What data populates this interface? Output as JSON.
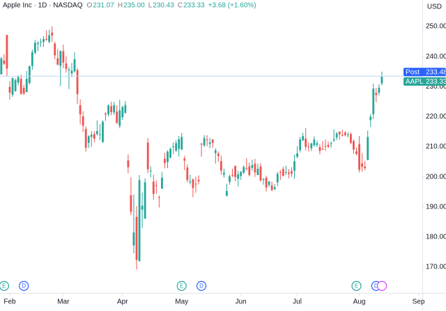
{
  "header": {
    "title": "Apple Inc · 1D · NASDAQ",
    "ohlc": [
      {
        "prefix": "O",
        "text": "231.07"
      },
      {
        "prefix": "H",
        "text": "235.00"
      },
      {
        "prefix": "L",
        "text": "230.43"
      },
      {
        "prefix": "C",
        "text": "233.33"
      }
    ],
    "change": "+3.68 (+1.60%)"
  },
  "chart_data": {
    "type": "candlestick",
    "currency": "USD",
    "up_color": "#26a69a",
    "down_color": "#ef5350",
    "open": [
      234.1,
      238.7,
      247.2,
      229.9,
      227.3,
      228.5,
      231.3,
      232.6,
      229.6,
      228.2,
      231.2,
      236.9,
      241.3,
      244.2,
      244.7,
      244.9,
      245.9,
      244.9,
      248.0,
      244.3,
      239.4,
      236.9,
      241.8,
      237.7,
      235.4,
      234.4,
      235.1,
      235.5,
      223.8,
      220.1,
      215.9,
      211.3,
      213.3,
      214.2,
      214.2,
      213.99,
      211.6,
      221.0,
      220.8,
      223.5,
      221.4,
      221.7,
      217.0,
      219.8,
      221.3,
      205.5,
      193.9,
      177.2,
      186.7,
      171.95,
      189.1,
      186.1,
      211.4,
      201.9,
      198.4,
      197.2,
      193.3,
      196.1,
      206.0,
      204.9,
      206.4,
      210.0,
      208.7,
      209.3,
      209.1,
      206.1,
      203.1,
      198.2,
      199.2,
      197.7,
      199.0,
      210.97,
      210.4,
      212.4,
      210.95,
      212.4,
      207.9,
      207.7,
      205.2,
      200.7,
      193.7,
      198.3,
      200.6,
      203.6,
      199.4,
      200.3,
      201.35,
      202.9,
      203.5,
      203.0,
      204.4,
      200.6,
      203.5,
      199.1,
      199.7,
      197.3,
      197.2,
      195.9,
      198.2,
      201.6,
      202.6,
      201.45,
      201.4,
      201.9,
      202.0,
      206.7,
      208.9,
      212.15,
      212.7,
      210.1,
      209.5,
      210.5,
      210.6,
      209.9,
      209.2,
      210.3,
      210.6,
      210.9,
      212.1,
      213.1,
      215.0,
      213.9,
      214.7,
      214.0,
      214.2,
      211.9,
      208.5,
      210.9,
      204.5,
      203.4,
      205.6,
      218.9,
      220.8,
      227.9,
      228.0,
      231.07
    ],
    "high": [
      239.9,
      240.8,
      247.2,
      231.8,
      233.1,
      232.7,
      233.8,
      234.0,
      230.6,
      235.2,
      236.9,
      242.3,
      245.6,
      245.2,
      246.0,
      246.8,
      248.7,
      248.9,
      250.0,
      244.98,
      242.5,
      242.1,
      244.0,
      240.1,
      236.6,
      237.9,
      241.4,
      236.2,
      225.8,
      221.8,
      216.8,
      213.9,
      215.2,
      215.2,
      218.8,
      217.5,
      218.8,
      221.5,
      224.1,
      225.0,
      224.99,
      223.8,
      225.6,
      223.7,
      225.2,
      207.5,
      199.9,
      194.15,
      190.3,
      200.6,
      194.8,
      199.5,
      212.9,
      203.5,
      200.7,
      198.8,
      193.8,
      201.6,
      208.0,
      208.8,
      209.75,
      211.5,
      212.2,
      213.6,
      214.6,
      206.99,
      204.1,
      200.7,
      199.4,
      200.1,
      200.5,
      211.3,
      213.9,
      213.9,
      212.96,
      212.6,
      209.5,
      208.5,
      207.0,
      202.75,
      197.7,
      200.7,
      202.7,
      203.8,
      201.96,
      201.9,
      203.8,
      206.2,
      204.75,
      205.7,
      206.0,
      204.35,
      204.5,
      199.7,
      200.4,
      198.7,
      198.4,
      197.6,
      201.7,
      202.3,
      203.4,
      203.7,
      202.6,
      203.2,
      207.4,
      210.2,
      213.3,
      214.65,
      216.2,
      211.4,
      211.3,
      213.5,
      212.1,
      210.9,
      211.9,
      212.4,
      211.8,
      211.8,
      215.8,
      214.95,
      215.15,
      215.7,
      215.2,
      214.85,
      214.8,
      212.4,
      209.8,
      213.6,
      207.9,
      205.3,
      215.4,
      220.85,
      231.0,
      229.6,
      230.8,
      235.0
    ],
    "low": [
      234.0,
      237.2,
      233.4,
      225.7,
      226.6,
      228.3,
      230.4,
      227.3,
      227.2,
      228.1,
      230.7,
      235.6,
      240.7,
      241.8,
      243.2,
      243.2,
      245.2,
      244.4,
      244.9,
      239.1,
      237.1,
      230.2,
      236.1,
      234.7,
      229.2,
      233.2,
      234.7,
      224.2,
      217.4,
      214.9,
      208.4,
      209.6,
      209.97,
      211.5,
      213.7,
      212.2,
      211.3,
      218.6,
      220.1,
      220.5,
      220.6,
      217.7,
      216.2,
      218.97,
      221.0,
      201.25,
      187.3,
      174.6,
      169.2,
      171.9,
      183.0,
      186.1,
      201.2,
      199.8,
      192.4,
      194.4,
      189.8,
      195.97,
      202.8,
      202.9,
      206.2,
      207.5,
      208.4,
      206.7,
      208.9,
      202.2,
      198.2,
      197.5,
      193.25,
      194.7,
      197.5,
      206.75,
      210.0,
      210.2,
      209.5,
      209.7,
      204.4,
      205.0,
      200.7,
      199.7,
      193.5,
      197.4,
      199.9,
      198.5,
      196.8,
      199.0,
      200.96,
      202.1,
      200.2,
      202.05,
      200.0,
      200.6,
      198.4,
      197.4,
      195.1,
      196.6,
      195.2,
      195.6,
      196.9,
      198.96,
      200.2,
      200.6,
      199.5,
      200.0,
      199.3,
      206.1,
      208.1,
      211.8,
      208.8,
      208.45,
      208.6,
      210.0,
      209.9,
      207.5,
      208.9,
      208.6,
      209.6,
      209.7,
      211.6,
      212.2,
      212.4,
      213.4,
      213.4,
      213.06,
      210.8,
      207.7,
      207.2,
      201.5,
      201.7,
      202.2,
      205.6,
      216.6,
      219.25,
      224.8,
      227.1,
      230.43
    ],
    "close": [
      239.4,
      237.6,
      236.0,
      228.0,
      232.8,
      232.2,
      233.2,
      227.6,
      227.7,
      232.6,
      236.9,
      241.5,
      244.6,
      244.5,
      244.9,
      245.8,
      245.6,
      247.1,
      247.0,
      240.4,
      237.3,
      241.8,
      238.0,
      235.9,
      235.7,
      235.3,
      239.1,
      227.5,
      220.8,
      217.0,
      209.7,
      213.5,
      214.0,
      212.7,
      215.2,
      214.1,
      218.3,
      220.7,
      223.75,
      221.5,
      223.85,
      217.9,
      222.1,
      223.2,
      223.9,
      203.2,
      188.4,
      181.5,
      172.4,
      198.9,
      190.4,
      198.2,
      202.5,
      202.1,
      194.3,
      197.0,
      193.2,
      199.7,
      204.6,
      208.4,
      209.3,
      210.1,
      211.2,
      212.5,
      213.3,
      205.4,
      198.9,
      198.5,
      196.25,
      197.5,
      198.5,
      210.8,
      212.9,
      212.3,
      211.45,
      211.3,
      208.8,
      206.9,
      202.1,
      201.4,
      195.3,
      200.2,
      200.4,
      199.95,
      200.85,
      201.7,
      203.3,
      202.8,
      200.6,
      203.9,
      201.45,
      202.7,
      198.8,
      199.2,
      196.45,
      198.4,
      195.6,
      196.6,
      201.0,
      201.5,
      200.3,
      201.56,
      201.0,
      201.08,
      205.17,
      207.8,
      212.4,
      213.55,
      209.95,
      210.0,
      211.1,
      212.4,
      211.2,
      208.6,
      209.1,
      210.2,
      210.0,
      211.2,
      212.5,
      214.4,
      214.15,
      213.8,
      213.9,
      214.05,
      211.3,
      209.05,
      207.6,
      202.4,
      203.35,
      202.9,
      213.25,
      220.0,
      229.35,
      227.2,
      229.65,
      233.33
    ],
    "ylim": [
      161.42,
      258.81
    ],
    "yticks": [
      {
        "value": 170,
        "label": "170.00"
      },
      {
        "value": 180,
        "label": "180.00"
      },
      {
        "value": 190,
        "label": "190.00"
      },
      {
        "value": 200,
        "label": "200.00"
      },
      {
        "value": 210,
        "label": "210.00"
      },
      {
        "value": 220,
        "label": "220.00"
      },
      {
        "value": 230,
        "label": "230.00"
      },
      {
        "value": 240,
        "label": "240.00"
      },
      {
        "value": 250,
        "label": "250.00"
      }
    ],
    "xlim": [
      -0.46,
      149.36
    ],
    "xticks": [
      {
        "value": 3,
        "label": "Feb"
      },
      {
        "value": 22,
        "label": "Mar"
      },
      {
        "value": 43,
        "label": "Apr"
      },
      {
        "value": 64,
        "label": "May"
      },
      {
        "value": 85,
        "label": "Jun"
      },
      {
        "value": 105,
        "label": "Jul"
      },
      {
        "value": 127,
        "label": "Aug"
      },
      {
        "value": 148,
        "label": "Sep"
      }
    ],
    "price_lines": [
      {
        "name": "Post",
        "value": 233.48,
        "color": "#2962ff"
      },
      {
        "name": "AAPL",
        "value": 233.33,
        "color": "#26a69a"
      }
    ],
    "events": [
      {
        "label": "E",
        "x": 1,
        "color": "#26a69a"
      },
      {
        "label": "D",
        "x": 8,
        "color": "#2962ff"
      },
      {
        "label": "E",
        "x": 64,
        "color": "#26a69a"
      },
      {
        "label": "D",
        "x": 71,
        "color": "#2962ff"
      },
      {
        "label": "E",
        "x": 126,
        "color": "#26a69a"
      },
      {
        "label": "D",
        "x": 133,
        "color": "#2962ff"
      }
    ]
  }
}
